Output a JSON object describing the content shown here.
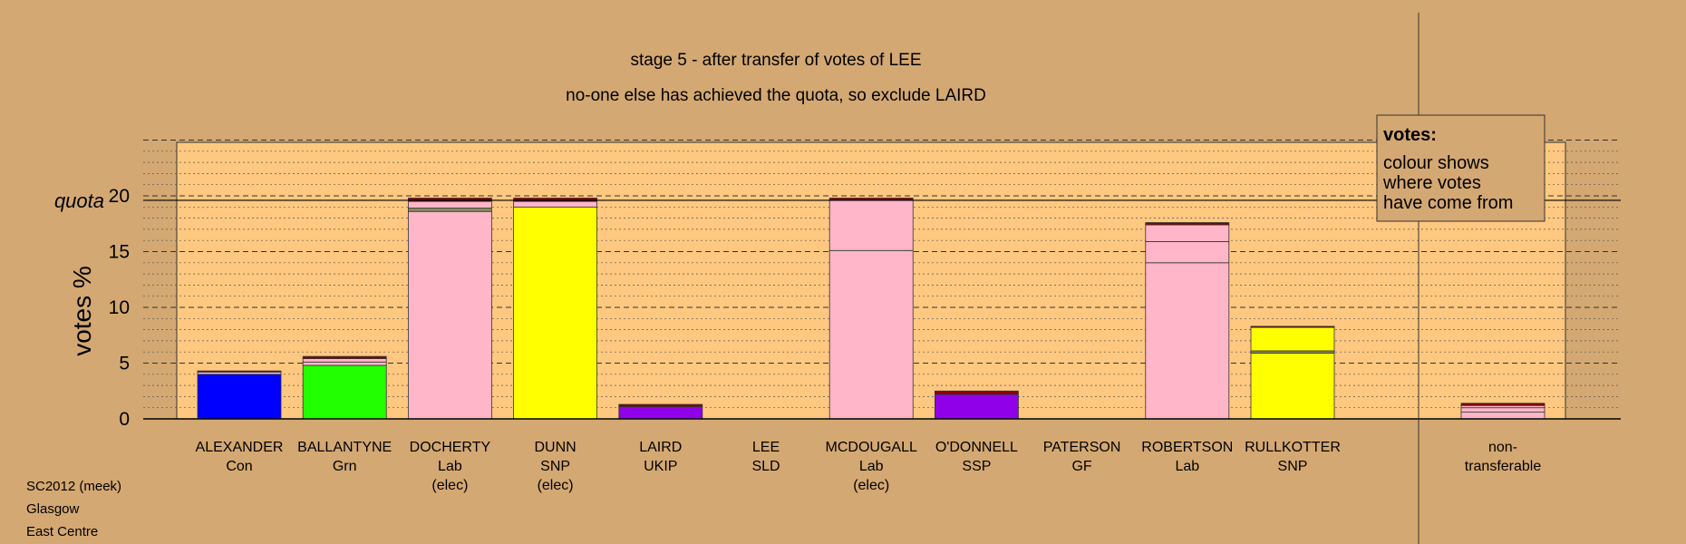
{
  "chart_data": {
    "type": "bar",
    "stacked": true,
    "title": "stage 5 - after transfer of votes of LEE",
    "subtitle": "no-one else has achieved the quota, so exclude LAIRD",
    "ylabel": "votes %",
    "ylim": [
      0,
      25
    ],
    "yticks": [
      0,
      5,
      10,
      15,
      20
    ],
    "quota": {
      "label": "quota",
      "value": 19.6
    },
    "grid": "dashed major, dotted minor",
    "legend": {
      "position": "top-right",
      "title": "votes:",
      "lines": [
        "colour shows",
        "where votes",
        "have come from"
      ]
    },
    "candidates": [
      {
        "name": "ALEXANDER",
        "party": "Con",
        "status": "",
        "segments": [
          {
            "value": 4.0,
            "color": "#0000ff"
          },
          {
            "value": 0.2,
            "color": "#ffb6c8"
          },
          {
            "value": 0.1,
            "color": "#8b0000"
          }
        ]
      },
      {
        "name": "BALLANTYNE",
        "party": "Grn",
        "status": "",
        "segments": [
          {
            "value": 4.8,
            "color": "#22ff00"
          },
          {
            "value": 0.3,
            "color": "#ffb6c8"
          },
          {
            "value": 0.3,
            "color": "#ffb6c8"
          },
          {
            "value": 0.2,
            "color": "#8b0000"
          }
        ]
      },
      {
        "name": "DOCHERTY",
        "party": "Lab",
        "status": "(elec)",
        "segments": [
          {
            "value": 18.6,
            "color": "#ffb6c8"
          },
          {
            "value": 0.3,
            "color": "#8b8b5a"
          },
          {
            "value": 0.6,
            "color": "#ffb6c8"
          },
          {
            "value": 0.3,
            "color": "#8b0000"
          }
        ]
      },
      {
        "name": "DUNN",
        "party": "SNP",
        "status": "(elec)",
        "segments": [
          {
            "value": 19.0,
            "color": "#ffff00"
          },
          {
            "value": 0.5,
            "color": "#ffb6c8"
          },
          {
            "value": 0.3,
            "color": "#8b0000"
          }
        ]
      },
      {
        "name": "LAIRD",
        "party": "UKIP",
        "status": "",
        "segments": [
          {
            "value": 1.1,
            "color": "#9000e8"
          },
          {
            "value": 0.2,
            "color": "#8b0000"
          }
        ]
      },
      {
        "name": "LEE",
        "party": "SLD",
        "status": "",
        "segments": []
      },
      {
        "name": "MCDOUGALL",
        "party": "Lab",
        "status": "(elec)",
        "segments": [
          {
            "value": 15.1,
            "color": "#ffb6c8"
          },
          {
            "value": 4.5,
            "color": "#ffb6c8"
          },
          {
            "value": 0.2,
            "color": "#8b0000"
          }
        ]
      },
      {
        "name": "O'DONNELL",
        "party": "SSP",
        "status": "",
        "segments": [
          {
            "value": 2.2,
            "color": "#9000e8"
          },
          {
            "value": 0.3,
            "color": "#8b0000"
          }
        ]
      },
      {
        "name": "PATERSON",
        "party": "GF",
        "status": "",
        "segments": []
      },
      {
        "name": "ROBERTSON",
        "party": "Lab",
        "status": "",
        "segments": [
          {
            "value": 14.0,
            "color": "#ffb6c8"
          },
          {
            "value": 1.9,
            "color": "#ffb6c8"
          },
          {
            "value": 1.5,
            "color": "#ffb6c8"
          },
          {
            "value": 0.2,
            "color": "#8b0000"
          }
        ]
      },
      {
        "name": "RULLKOTTER",
        "party": "SNP",
        "status": "",
        "segments": [
          {
            "value": 5.9,
            "color": "#ffff00"
          },
          {
            "value": 0.2,
            "color": "#8b8b5a"
          },
          {
            "value": 2.1,
            "color": "#ffff00"
          },
          {
            "value": 0.1,
            "color": "#8b0000"
          }
        ]
      }
    ],
    "nontransferable": {
      "label_lines": [
        "non-",
        "transferable"
      ],
      "segments": [
        {
          "value": 0.6,
          "color": "#ffb6c8"
        },
        {
          "value": 0.4,
          "color": "#ffb6c8"
        },
        {
          "value": 0.2,
          "color": "#ffb6c8"
        },
        {
          "value": 0.2,
          "color": "#8b0000"
        }
      ]
    }
  },
  "footer": {
    "election": "SC2012 (meek)",
    "council": "Glasgow",
    "ward": "East Centre"
  }
}
